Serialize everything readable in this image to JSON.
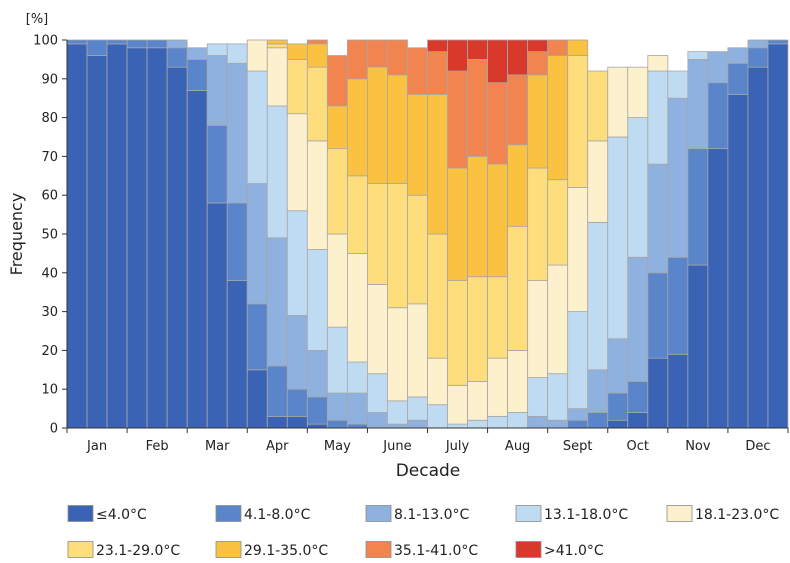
{
  "chart_data": {
    "type": "bar",
    "stacked": true,
    "ylabel": "Frequency",
    "yunit": "[%]",
    "xlabel": "Decade",
    "ylim": [
      0,
      100
    ],
    "yticks": [
      0,
      10,
      20,
      30,
      40,
      50,
      60,
      70,
      80,
      90,
      100
    ],
    "grid": false,
    "legend_position": "bottom",
    "month_labels": [
      "Jan",
      "Feb",
      "Mar",
      "Apr",
      "May",
      "June",
      "July",
      "Aug",
      "Sept",
      "Oct",
      "Nov",
      "Dec"
    ],
    "categories": [
      "Jan-1",
      "Jan-2",
      "Jan-3",
      "Feb-1",
      "Feb-2",
      "Feb-3",
      "Mar-1",
      "Mar-2",
      "Mar-3",
      "Apr-1",
      "Apr-2",
      "Apr-3",
      "May-1",
      "May-2",
      "May-3",
      "June-1",
      "June-2",
      "June-3",
      "July-1",
      "July-2",
      "July-3",
      "Aug-1",
      "Aug-2",
      "Aug-3",
      "Sept-1",
      "Sept-2",
      "Sept-3",
      "Oct-1",
      "Oct-2",
      "Oct-3",
      "Nov-1",
      "Nov-2",
      "Nov-3",
      "Dec-1",
      "Dec-2",
      "Dec-3"
    ],
    "series": [
      {
        "name": "≤4.0°C",
        "color": "#3a63b6",
        "values": [
          99,
          96,
          99,
          98,
          98,
          93,
          87,
          58,
          38,
          15,
          3,
          3,
          1,
          0,
          0,
          0,
          0,
          0,
          0,
          0,
          0,
          0,
          0,
          0,
          0,
          0,
          0,
          2,
          4,
          18,
          19,
          42,
          72,
          86,
          93,
          99
        ]
      },
      {
        "name": "4.1-8.0°C",
        "color": "#5a85ca",
        "values": [
          1,
          4,
          1,
          2,
          2,
          5,
          8,
          20,
          20,
          17,
          13,
          7,
          7,
          2,
          1,
          0,
          0,
          0,
          0,
          0,
          0,
          0,
          0,
          0,
          0,
          2,
          4,
          7,
          8,
          22,
          25,
          30,
          17,
          8,
          5,
          1
        ]
      },
      {
        "name": "8.1-13.0°C",
        "color": "#8fb1df",
        "values": [
          0,
          0,
          0,
          0,
          0,
          2,
          3,
          18,
          36,
          31,
          33,
          19,
          12,
          7,
          8,
          4,
          1,
          2,
          0,
          0,
          0,
          0,
          0,
          3,
          2,
          3,
          11,
          14,
          32,
          28,
          41,
          23,
          8,
          4,
          2,
          0
        ]
      },
      {
        "name": "13.1-18.0°C",
        "color": "#bedbf2",
        "values": [
          0,
          0,
          0,
          0,
          0,
          0,
          0,
          3,
          5,
          29,
          34,
          27,
          26,
          17,
          8,
          10,
          6,
          6,
          6,
          1,
          2,
          3,
          4,
          10,
          12,
          25,
          38,
          52,
          36,
          24,
          7,
          2,
          0,
          0,
          0,
          0
        ]
      },
      {
        "name": "18.1-23.0°C",
        "color": "#fdf0cc",
        "values": [
          0,
          0,
          0,
          0,
          0,
          0,
          0,
          0,
          0,
          8,
          15,
          25,
          28,
          24,
          28,
          23,
          24,
          24,
          12,
          10,
          10,
          15,
          16,
          25,
          28,
          32,
          21,
          18,
          13,
          4,
          0,
          0,
          0,
          0,
          0,
          0
        ]
      },
      {
        "name": "23.1-29.0°C",
        "color": "#fedd7d",
        "values": [
          0,
          0,
          0,
          0,
          0,
          0,
          0,
          0,
          0,
          0,
          1,
          14,
          19,
          22,
          20,
          26,
          32,
          28,
          32,
          27,
          27,
          21,
          32,
          29,
          22,
          34,
          18,
          0,
          0,
          0,
          0,
          0,
          0,
          0,
          0,
          0
        ]
      },
      {
        "name": "29.1-35.0°C",
        "color": "#fbc242",
        "values": [
          0,
          0,
          0,
          0,
          0,
          0,
          0,
          0,
          0,
          0,
          1,
          4,
          6,
          11,
          25,
          30,
          28,
          26,
          36,
          29,
          31,
          29,
          21,
          24,
          32,
          4,
          0,
          0,
          0,
          0,
          0,
          0,
          0,
          0,
          0,
          0
        ]
      },
      {
        "name": "35.1-41.0°C",
        "color": "#f1844f",
        "values": [
          0,
          0,
          0,
          0,
          0,
          0,
          0,
          0,
          0,
          0,
          0,
          0,
          1,
          13,
          10,
          7,
          9,
          12,
          11,
          25,
          25,
          21,
          18,
          6,
          4,
          0,
          0,
          0,
          0,
          0,
          0,
          0,
          0,
          0,
          0,
          0
        ]
      },
      {
        "name": ">41.0°C",
        "color": "#d8392a",
        "values": [
          0,
          0,
          0,
          0,
          0,
          0,
          0,
          0,
          0,
          0,
          0,
          0,
          0,
          0,
          0,
          0,
          0,
          0,
          3,
          8,
          5,
          11,
          9,
          3,
          0,
          0,
          0,
          0,
          0,
          0,
          0,
          0,
          0,
          0,
          0,
          0
        ]
      }
    ]
  }
}
